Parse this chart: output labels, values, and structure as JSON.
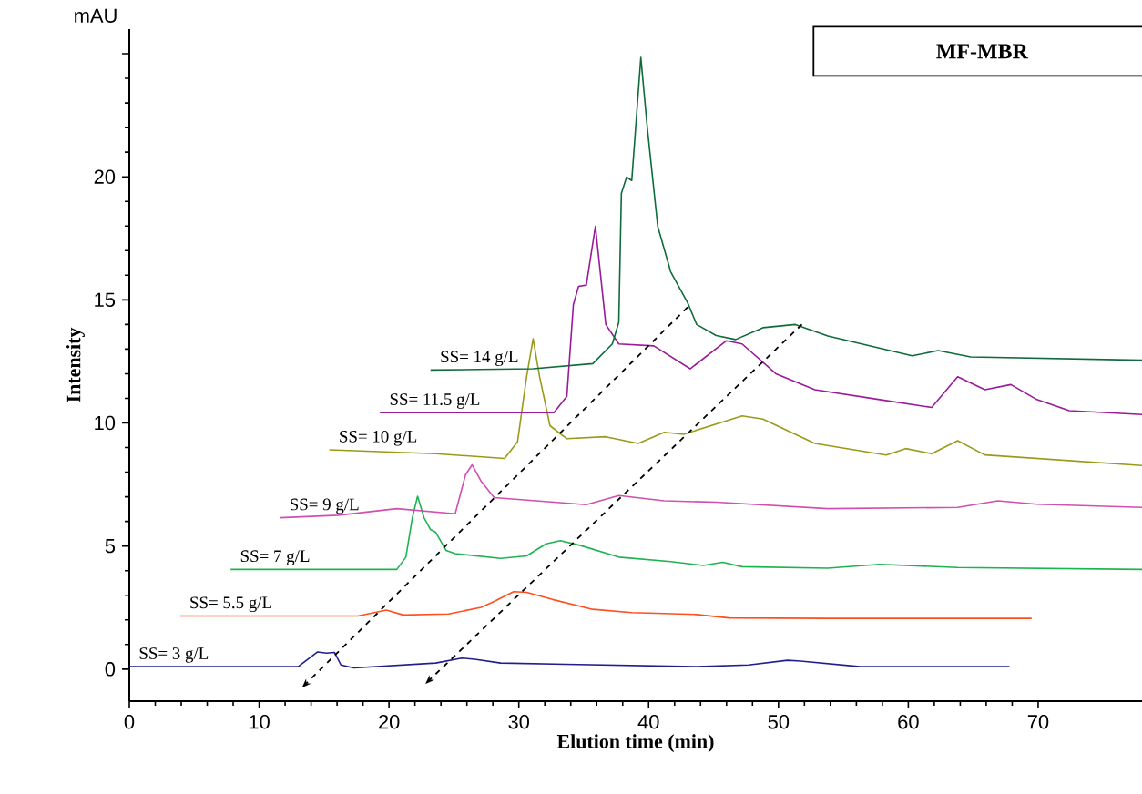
{
  "chart_data": {
    "type": "line",
    "title": "MF-MBR",
    "xlabel": "Elution time (min)",
    "ylabel": "Intensity",
    "annotations": [
      "mAU"
    ],
    "xlim": [
      0,
      78
    ],
    "ylim": [
      -1.3,
      26
    ],
    "xticks": [
      0,
      10,
      20,
      30,
      40,
      50,
      60,
      70
    ],
    "yticks": [
      0,
      5,
      10,
      15,
      20,
      {
        "value": 25,
        "label": null
      }
    ],
    "grid": false,
    "series": [
      {
        "name": "SS= 3 g/L",
        "color": "#1f1f8f",
        "x": [
          0,
          13,
          14.5,
          15.2,
          15.8,
          16.3,
          17.3,
          23.6,
          25.6,
          26.6,
          28.6,
          33.6,
          43.7,
          47.7,
          50.7,
          51.7,
          56.3,
          66.9,
          67.8
        ],
        "values": [
          0.1,
          0.1,
          0.7,
          0.65,
          0.68,
          0.17,
          0.05,
          0.25,
          0.45,
          0.4,
          0.25,
          0.2,
          0.1,
          0.17,
          0.36,
          0.33,
          0.1,
          0.1,
          0.1
        ]
      },
      {
        "name": "SS= 5.5 g/L",
        "color": "#ff4f1f",
        "x": [
          3.9,
          11.0,
          17.6,
          19.8,
          21.1,
          24.6,
          27.1,
          28.1,
          29.6,
          30.6,
          32.6,
          35.7,
          38.7,
          43.7,
          46.2,
          53.8,
          69.5
        ],
        "values": [
          2.16,
          2.16,
          2.16,
          2.4,
          2.2,
          2.24,
          2.51,
          2.75,
          3.15,
          3.12,
          2.83,
          2.43,
          2.3,
          2.22,
          2.08,
          2.06,
          2.06
        ]
      },
      {
        "name": "SS= 7 g/L",
        "color": "#1db34f",
        "x": [
          7.8,
          20.6,
          21.3,
          21.8,
          22.2,
          22.7,
          23.2,
          23.6,
          24.4,
          25.1,
          28.6,
          30.6,
          32.1,
          33.2,
          34.7,
          37.7,
          41.7,
          44.2,
          45.7,
          47.2,
          53.8,
          57.8,
          63.8,
          78
        ],
        "values": [
          4.05,
          4.05,
          4.55,
          6.15,
          7.02,
          6.15,
          5.67,
          5.56,
          4.82,
          4.69,
          4.5,
          4.6,
          5.09,
          5.22,
          5.03,
          4.55,
          4.37,
          4.21,
          4.34,
          4.16,
          4.1,
          4.26,
          4.13,
          4.05
        ]
      },
      {
        "name": "SS= 9 g/L",
        "color": "#d04fb0",
        "x": [
          11.6,
          16.1,
          20.6,
          25.1,
          25.9,
          26.4,
          27.1,
          28.1,
          32.7,
          35.2,
          37.7,
          41.2,
          45.2,
          53.8,
          63.8,
          66.9,
          69.9,
          78
        ],
        "values": [
          6.15,
          6.25,
          6.52,
          6.31,
          7.9,
          8.3,
          7.63,
          6.97,
          6.78,
          6.68,
          7.05,
          6.84,
          6.78,
          6.52,
          6.57,
          6.84,
          6.7,
          6.57
        ]
      },
      {
        "name": "SS= 10 g/L",
        "color": "#9a9a1a",
        "x": [
          15.4,
          23.6,
          28.9,
          29.9,
          30.6,
          31.1,
          31.6,
          32.4,
          33.7,
          36.7,
          39.2,
          41.2,
          42.7,
          47.2,
          48.8,
          52.8,
          58.3,
          59.8,
          61.8,
          63.8,
          65.9,
          78
        ],
        "values": [
          8.91,
          8.75,
          8.56,
          9.23,
          11.88,
          13.42,
          11.88,
          9.89,
          9.36,
          9.44,
          9.17,
          9.62,
          9.54,
          10.29,
          10.16,
          9.17,
          8.7,
          8.96,
          8.75,
          9.28,
          8.7,
          8.27
        ]
      },
      {
        "name": "SS= 11.5 g/L",
        "color": "#9a1a9a",
        "x": [
          19.3,
          32.7,
          33.7,
          34.2,
          34.6,
          35.2,
          35.9,
          36.7,
          37.7,
          40.4,
          43.2,
          46.0,
          47.2,
          49.8,
          52.8,
          57.8,
          61.8,
          63.8,
          65.9,
          67.9,
          69.9,
          72.4,
          78
        ],
        "values": [
          10.42,
          10.42,
          11.08,
          14.8,
          15.55,
          15.6,
          17.99,
          14.0,
          13.21,
          13.13,
          12.2,
          13.34,
          13.21,
          12.0,
          11.35,
          10.95,
          10.63,
          11.88,
          11.35,
          11.56,
          10.95,
          10.5,
          10.34
        ]
      },
      {
        "name": "SS= 14 g/L",
        "color": "#0f6b3a",
        "x": [
          23.2,
          31.1,
          35.7,
          37.2,
          37.7,
          37.9,
          38.3,
          38.7,
          39.4,
          39.9,
          40.7,
          41.7,
          43.0,
          43.7,
          45.2,
          46.7,
          48.8,
          51.3,
          53.8,
          60.3,
          62.3,
          64.8,
          78
        ],
        "values": [
          12.15,
          12.2,
          12.41,
          13.21,
          14.09,
          19.32,
          19.99,
          19.85,
          24.85,
          21.98,
          17.99,
          16.14,
          14.89,
          14.0,
          13.55,
          13.39,
          13.87,
          14.0,
          13.53,
          12.73,
          12.94,
          12.68,
          12.55
        ]
      }
    ]
  }
}
